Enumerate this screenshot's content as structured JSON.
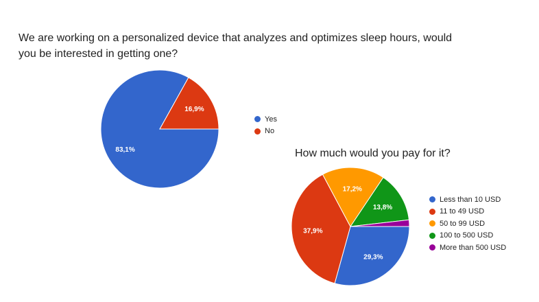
{
  "chart_data": [
    {
      "type": "pie",
      "title": "We are working on a personalized device that analyzes and optimizes sleep hours, would you be interested in getting one?",
      "categories": [
        "Yes",
        "No"
      ],
      "values": [
        83.1,
        16.9
      ],
      "labels": [
        "83,1%",
        "16,9%"
      ],
      "colors": [
        "#3366cc",
        "#dc3912"
      ],
      "legend_position": "right"
    },
    {
      "type": "pie",
      "title": "How much would you pay for it?",
      "categories": [
        "Less than 10 USD",
        "11 to 49 USD",
        "50 to 99 USD",
        "100 to 500 USD",
        "More than 500 USD"
      ],
      "values": [
        29.3,
        37.9,
        17.2,
        13.8,
        1.8
      ],
      "labels": [
        "29,3%",
        "37,9%",
        "17,2%",
        "13,8%",
        ""
      ],
      "colors": [
        "#3366cc",
        "#dc3912",
        "#ff9900",
        "#109618",
        "#990099"
      ],
      "legend_position": "right"
    }
  ]
}
